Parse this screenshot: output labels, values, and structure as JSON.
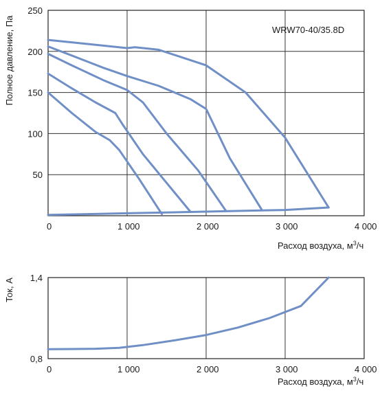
{
  "chart_data": [
    {
      "type": "line",
      "title": "",
      "annotation": "WRW70-40/35.8D",
      "xlabel": "Расход воздуха, м",
      "xlabel_sup": "3",
      "xlabel_suffix": "/ч",
      "ylabel": "Полное давление, Па",
      "xlim": [
        0,
        4000
      ],
      "ylim": [
        0,
        250
      ],
      "x_ticks": [
        0,
        1000,
        2000,
        3000,
        4000
      ],
      "x_tick_labels": [
        "0",
        "1 000",
        "2 000",
        "3 000",
        "4 000"
      ],
      "y_ticks": [
        50,
        100,
        150,
        200,
        250
      ],
      "y_tick_labels": [
        "50",
        "100",
        "150",
        "200",
        "250"
      ],
      "grid": true,
      "color": "#6f8fc6",
      "series": [
        {
          "x": [
            0,
            300,
            600,
            780,
            900,
            1150,
            1440
          ],
          "y": [
            150,
            125,
            102,
            92,
            80,
            45,
            2
          ]
        },
        {
          "x": [
            0,
            300,
            600,
            850,
            950,
            1200,
            1500,
            1800
          ],
          "y": [
            173,
            155,
            138,
            125,
            110,
            75,
            40,
            5
          ]
        },
        {
          "x": [
            0,
            300,
            700,
            1000,
            1200,
            1500,
            1900,
            2250
          ],
          "y": [
            197,
            183,
            165,
            153,
            138,
            100,
            55,
            6
          ]
        },
        {
          "x": [
            0,
            300,
            700,
            1000,
            1400,
            1800,
            2000,
            2300,
            2700
          ],
          "y": [
            206,
            195,
            180,
            170,
            158,
            142,
            130,
            70,
            8
          ]
        },
        {
          "x": [
            0,
            500,
            1000,
            1100,
            1400,
            2000,
            2500,
            3000,
            3550
          ],
          "y": [
            214,
            209,
            204,
            205,
            202,
            183,
            150,
            95,
            10
          ]
        },
        {
          "x": [
            0,
            500,
            1000,
            1500,
            2000,
            2500,
            3000,
            3550
          ],
          "y": [
            1,
            2,
            3,
            4,
            5,
            6,
            7,
            10
          ]
        }
      ]
    },
    {
      "type": "line",
      "title": "",
      "xlabel": "Расход воздуха, м",
      "xlabel_sup": "3",
      "xlabel_suffix": "/ч",
      "ylabel": "Ток, А",
      "xlim": [
        0,
        4000
      ],
      "ylim": [
        0.8,
        1.4
      ],
      "x_ticks": [
        0,
        1000,
        2000,
        3000,
        4000
      ],
      "x_tick_labels": [
        "0",
        "1 000",
        "2 000",
        "3 000",
        "4 000"
      ],
      "y_ticks": [
        0.8,
        1.4
      ],
      "y_tick_labels": [
        "0,8",
        "1,4"
      ],
      "grid": true,
      "color": "#6f8fc6",
      "series": [
        {
          "x": [
            0,
            300,
            600,
            900,
            1200,
            1600,
            2000,
            2400,
            2800,
            3200,
            3550
          ],
          "y": [
            0.87,
            0.871,
            0.873,
            0.88,
            0.9,
            0.935,
            0.975,
            1.03,
            1.1,
            1.19,
            1.4
          ]
        }
      ]
    }
  ]
}
